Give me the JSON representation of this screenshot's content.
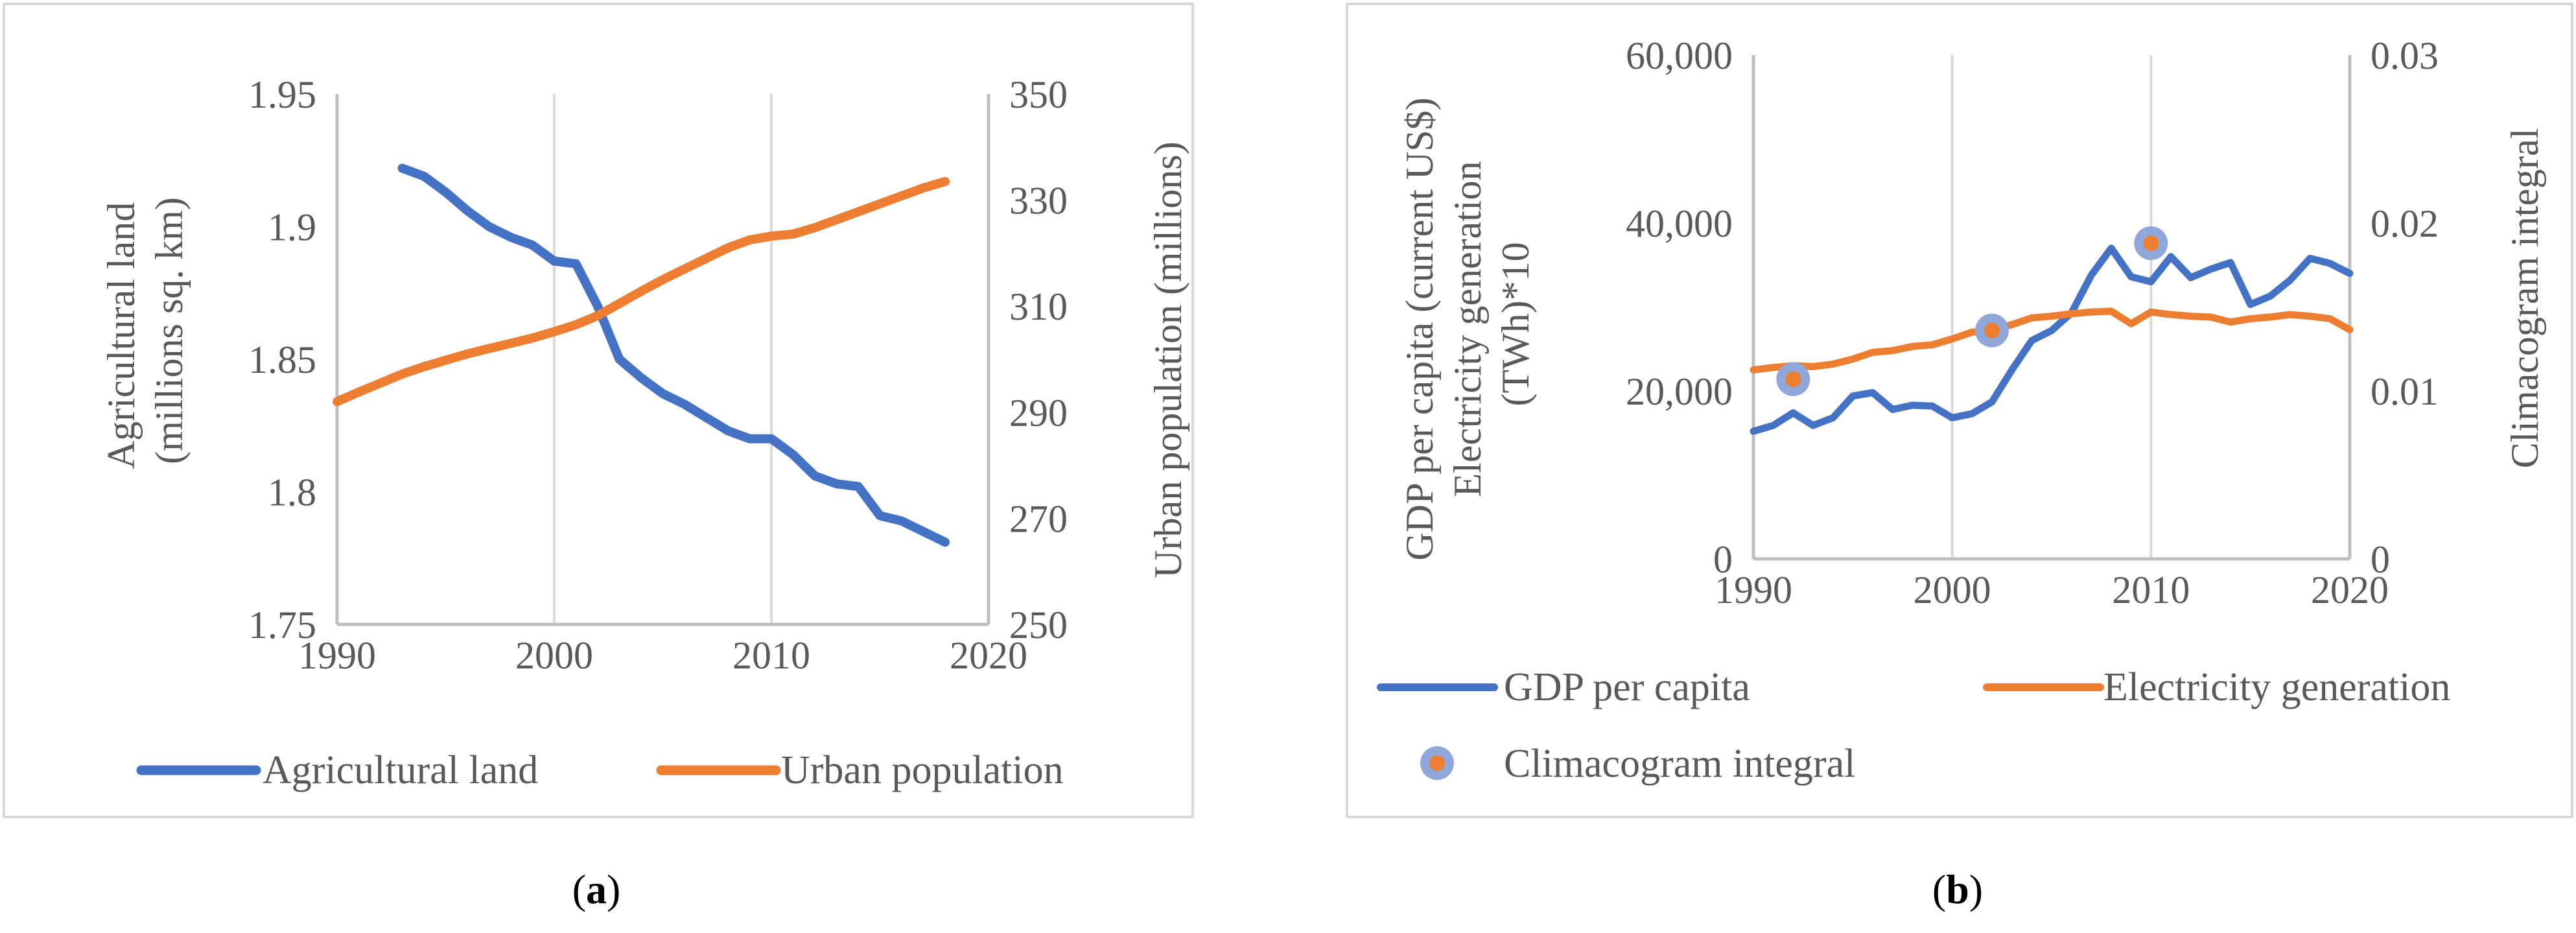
{
  "figure": {
    "panels": [
      {
        "label_open": "(",
        "label_letter": "a",
        "label_close": ")"
      },
      {
        "label_open": "(",
        "label_letter": "b",
        "label_close": ")"
      }
    ]
  },
  "chart_data": [
    {
      "type": "line",
      "title": "",
      "xlabel": "",
      "ylabel": "Agricultural land (millions sq. km)",
      "ylabel_lines": [
        "Agricultural land",
        "(millions sq. km)"
      ],
      "y2label": "Urban population (millions)",
      "xlim": [
        1990,
        2020
      ],
      "ylim": [
        1.75,
        1.95
      ],
      "y2lim": [
        250,
        350
      ],
      "x_ticks": [
        "1990",
        "2000",
        "2010",
        "2020"
      ],
      "y_ticks": [
        "1.75",
        "1.8",
        "1.85",
        "1.9",
        "1.95"
      ],
      "y2_ticks": [
        "250",
        "270",
        "290",
        "310",
        "330",
        "350"
      ],
      "grid": "vertical",
      "legend_position": "bottom",
      "series": [
        {
          "name": "Agricultural land",
          "axis": "left",
          "color": "#4472C4",
          "x": [
            1993,
            1994,
            1995,
            1996,
            1997,
            1998,
            1999,
            2000,
            2001,
            2002,
            2003,
            2004,
            2005,
            2006,
            2007,
            2008,
            2009,
            2010,
            2011,
            2012,
            2013,
            2014,
            2015,
            2016,
            2017,
            2018
          ],
          "values": [
            1.922,
            1.919,
            1.913,
            1.906,
            1.9,
            1.896,
            1.893,
            1.887,
            1.886,
            1.87,
            1.85,
            1.843,
            1.837,
            1.833,
            1.828,
            1.823,
            1.82,
            1.82,
            1.814,
            1.806,
            1.803,
            1.802,
            1.791,
            1.789,
            1.785,
            1.781
          ]
        },
        {
          "name": "Urban population",
          "axis": "right",
          "color": "#ED7D31",
          "x": [
            1990,
            1991,
            1992,
            1993,
            1994,
            1995,
            1996,
            1997,
            1998,
            1999,
            2000,
            2001,
            2002,
            2003,
            2004,
            2005,
            2006,
            2007,
            2008,
            2009,
            2010,
            2011,
            2012,
            2013,
            2014,
            2015,
            2016,
            2017,
            2018
          ],
          "values": [
            292,
            293.8,
            295.5,
            297.2,
            298.6,
            299.8,
            301,
            302,
            303,
            304,
            305.2,
            306.5,
            308.2,
            310.5,
            312.8,
            315,
            317,
            319,
            321,
            322.5,
            323.2,
            323.6,
            324.8,
            326.3,
            327.8,
            329.3,
            330.8,
            332.3,
            333.5
          ]
        }
      ]
    },
    {
      "type": "line",
      "title": "",
      "xlabel": "",
      "ylabel_lines": [
        "GDP per capita (current US$)",
        "Electricity generation",
        "(TWh)*10"
      ],
      "y2label": "Climacogram integral",
      "xlim": [
        1990,
        2020
      ],
      "ylim": [
        0,
        60000
      ],
      "y2lim": [
        0,
        0.03
      ],
      "x_ticks": [
        "1990",
        "2000",
        "2010",
        "2020"
      ],
      "y_ticks": [
        "0",
        "20,000",
        "40,000",
        "60,000"
      ],
      "y2_ticks": [
        "0",
        "0.01",
        "0.02",
        "0.03"
      ],
      "grid": "vertical",
      "legend_position": "bottom",
      "series": [
        {
          "name": "GDP per capita",
          "axis": "left",
          "color": "#4472C4",
          "x": [
            1990,
            1991,
            1992,
            1993,
            1994,
            1995,
            1996,
            1997,
            1998,
            1999,
            2000,
            2001,
            2002,
            2003,
            2004,
            2005,
            2006,
            2007,
            2008,
            2009,
            2010,
            2011,
            2012,
            2013,
            2014,
            2015,
            2016,
            2017,
            2018,
            2019,
            2020
          ],
          "values": [
            15200,
            15900,
            17400,
            15900,
            16800,
            19400,
            19800,
            17800,
            18300,
            18200,
            16800,
            17300,
            18700,
            22500,
            26000,
            27200,
            29300,
            33800,
            37000,
            33600,
            33000,
            36000,
            33500,
            34500,
            35300,
            30300,
            31300,
            33200,
            35800,
            35200,
            34000
          ]
        },
        {
          "name": "Electricity generation",
          "axis": "left",
          "color": "#ED7D31",
          "x": [
            1990,
            1991,
            1992,
            1993,
            1994,
            1995,
            1996,
            1997,
            1998,
            1999,
            2000,
            2001,
            2002,
            2003,
            2004,
            2005,
            2006,
            2007,
            2008,
            2009,
            2010,
            2011,
            2012,
            2013,
            2014,
            2015,
            2016,
            2017,
            2018,
            2019,
            2020
          ],
          "values": [
            22500,
            22800,
            23000,
            22900,
            23200,
            23800,
            24600,
            24800,
            25300,
            25500,
            26200,
            27000,
            27200,
            27900,
            28700,
            28900,
            29200,
            29400,
            29500,
            28000,
            29400,
            29100,
            28900,
            28800,
            28200,
            28600,
            28800,
            29100,
            28900,
            28600,
            27300
          ]
        },
        {
          "name": "Climacogram integral",
          "axis": "right",
          "marker": "circle",
          "color": "#ED7D31",
          "ring_color": "#8FA8D9",
          "x": [
            1992,
            2002,
            2010
          ],
          "values": [
            0.0107,
            0.0136,
            0.0188
          ]
        }
      ]
    }
  ]
}
